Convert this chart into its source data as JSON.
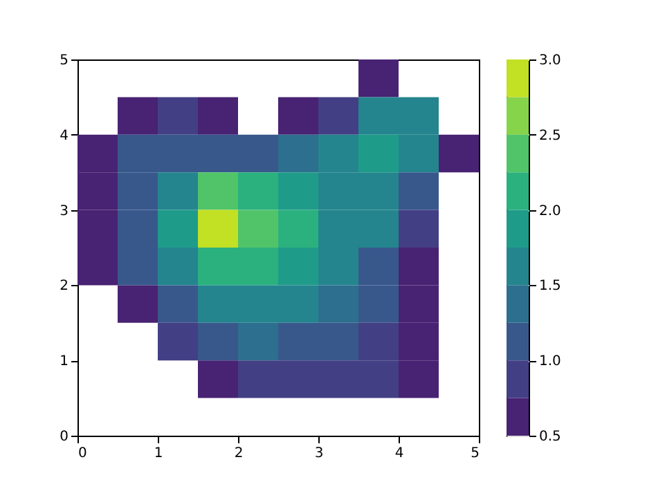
{
  "chart_data": {
    "type": "heatmap",
    "x": [
      0.25,
      0.75,
      1.25,
      1.75,
      2.25,
      2.75,
      3.25,
      3.75,
      4.25,
      4.75
    ],
    "y": [
      4.75,
      4.25,
      3.75,
      3.25,
      2.75,
      2.25,
      1.75,
      1.25,
      0.75
    ],
    "cells": [
      [
        null,
        null,
        null,
        null,
        null,
        null,
        null,
        0.6,
        null,
        null
      ],
      [
        null,
        0.7,
        0.8,
        0.6,
        null,
        0.6,
        0.9,
        1.7,
        1.5,
        null
      ],
      [
        0.6,
        1.0,
        1.2,
        1.2,
        1.1,
        1.3,
        1.5,
        1.9,
        1.6,
        0.6
      ],
      [
        0.7,
        1.2,
        1.7,
        2.3,
        2.2,
        1.8,
        1.6,
        1.6,
        1.2,
        null
      ],
      [
        0.6,
        1.2,
        1.8,
        2.9,
        2.4,
        2.0,
        1.6,
        1.5,
        0.8,
        null
      ],
      [
        0.6,
        1.1,
        1.6,
        2.0,
        2.1,
        1.9,
        1.5,
        1.1,
        0.7,
        null
      ],
      [
        null,
        0.7,
        1.2,
        1.6,
        1.7,
        1.6,
        1.3,
        1.0,
        0.7,
        null
      ],
      [
        null,
        null,
        0.8,
        1.2,
        1.3,
        1.2,
        1.0,
        0.9,
        0.7,
        null
      ],
      [
        null,
        null,
        null,
        0.6,
        0.8,
        0.8,
        0.8,
        0.8,
        0.6,
        null
      ]
    ],
    "xlim": [
      0,
      5
    ],
    "xticks": [
      0,
      1,
      2,
      3,
      4,
      5
    ],
    "ylim": [
      0,
      5
    ],
    "yticks": [
      0,
      1,
      2,
      3,
      4,
      5
    ],
    "clim": [
      0.5,
      3.0
    ],
    "cticks": [
      0.5,
      {
        "value": 1,
        "label": "1.0"
      },
      1.5,
      {
        "value": 2,
        "label": "2.0"
      },
      2.5,
      {
        "value": 3,
        "label": "3.0"
      }
    ],
    "grid": false
  }
}
